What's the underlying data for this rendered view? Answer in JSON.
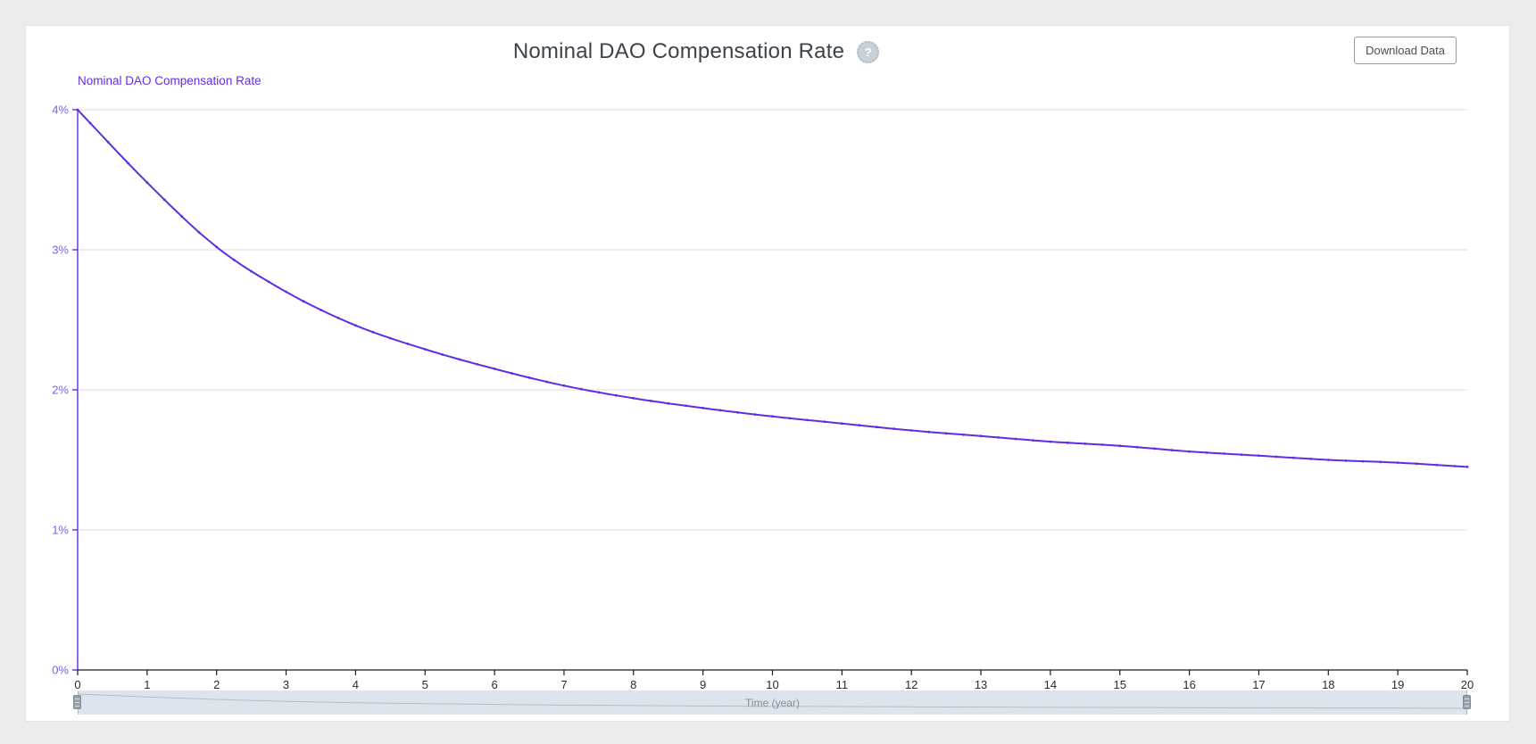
{
  "page": {
    "background": "#ececec",
    "card_background": "#ffffff"
  },
  "header": {
    "title": "Nominal DAO Compensation Rate",
    "help_glyph": "?",
    "download_button_label": "Download Data"
  },
  "legend": {
    "label": "Nominal DAO Compensation Rate"
  },
  "colors": {
    "series_line": "#5f2ee2",
    "y_axis_line": "#5f2ee2",
    "y_tick_label": "#7e5eee",
    "x_axis_line": "#1a1a1a",
    "x_tick_label": "#2b2b2b",
    "gridline": "#dedede",
    "selector_background": "#dde4eb",
    "selector_mini_line": "#b7bdc4",
    "selector_label": "#878e95"
  },
  "chart_data": {
    "type": "line",
    "title": "Nominal DAO Compensation Rate",
    "xlabel": "Time (year)",
    "ylabel": "",
    "xlim": [
      0,
      20
    ],
    "ylim": [
      0,
      4
    ],
    "x_ticks": [
      0,
      1,
      2,
      3,
      4,
      5,
      6,
      7,
      8,
      9,
      10,
      11,
      12,
      13,
      14,
      15,
      16,
      17,
      18,
      19,
      20
    ],
    "x_tick_labels": [
      "0",
      "1",
      "2",
      "3",
      "4",
      "5",
      "6",
      "7",
      "8",
      "9",
      "10",
      "11",
      "12",
      "13",
      "14",
      "15",
      "16",
      "17",
      "18",
      "19",
      "20"
    ],
    "y_ticks": [
      0,
      1,
      2,
      3,
      4
    ],
    "y_tick_labels": [
      "0%",
      "1%",
      "2%",
      "3%",
      "4%"
    ],
    "grid": true,
    "legend_position": "top-left",
    "marker_interval_years": 0.25,
    "series": [
      {
        "name": "Nominal DAO Compensation Rate",
        "unit": "%",
        "x": [
          0,
          1,
          2,
          3,
          4,
          5,
          6,
          7,
          8,
          9,
          10,
          11,
          12,
          13,
          14,
          15,
          16,
          17,
          18,
          19,
          20
        ],
        "values": [
          4.0,
          3.48,
          3.02,
          2.7,
          2.46,
          2.29,
          2.15,
          2.03,
          1.94,
          1.87,
          1.81,
          1.76,
          1.71,
          1.67,
          1.63,
          1.6,
          1.56,
          1.53,
          1.5,
          1.48,
          1.45
        ]
      }
    ]
  },
  "range_selector": {
    "label": "Time (year)",
    "start_year": 0,
    "end_year": 20
  }
}
